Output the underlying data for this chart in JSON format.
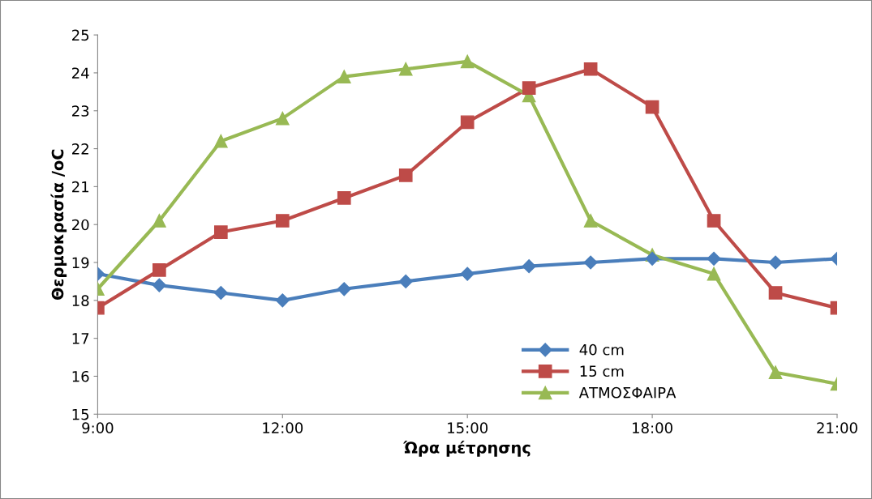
{
  "chart_data": {
    "type": "line",
    "xlabel": "Ώρα μέτρησης",
    "ylabel": "Θερμοκρασία /oC",
    "x": [
      9,
      10,
      11,
      12,
      13,
      14,
      15,
      16,
      17,
      18,
      19,
      20,
      21
    ],
    "series": [
      {
        "name": "40 cm",
        "color": "#4a7ebb",
        "marker": "diamond",
        "values": [
          18.7,
          18.4,
          18.2,
          18.0,
          18.3,
          18.5,
          18.7,
          18.9,
          19.0,
          19.1,
          19.1,
          19.0,
          19.1
        ]
      },
      {
        "name": "15 cm",
        "color": "#be4b48",
        "marker": "square",
        "values": [
          17.8,
          18.8,
          19.8,
          20.1,
          20.7,
          21.3,
          22.7,
          23.6,
          24.1,
          23.1,
          20.1,
          18.2,
          17.8
        ]
      },
      {
        "name": "ΑΤΜΟΣΦΑΙΡΑ",
        "color": "#98b954",
        "marker": "triangle",
        "values": [
          18.3,
          20.1,
          22.2,
          22.8,
          23.9,
          24.1,
          24.3,
          23.4,
          20.1,
          19.2,
          18.7,
          16.1,
          15.8
        ]
      }
    ],
    "xlim": [
      9,
      21
    ],
    "xticks": [
      {
        "value": 9,
        "label": "9:00"
      },
      {
        "value": 12,
        "label": "12:00"
      },
      {
        "value": 15,
        "label": "15:00"
      },
      {
        "value": 18,
        "label": "18:00"
      },
      {
        "value": 21,
        "label": "21:00"
      }
    ],
    "ylim": [
      15,
      25
    ],
    "yticks": [
      15,
      16,
      17,
      18,
      19,
      20,
      21,
      22,
      23,
      24,
      25
    ],
    "grid": false,
    "legend": "bottom right",
    "line_style": "solid"
  }
}
